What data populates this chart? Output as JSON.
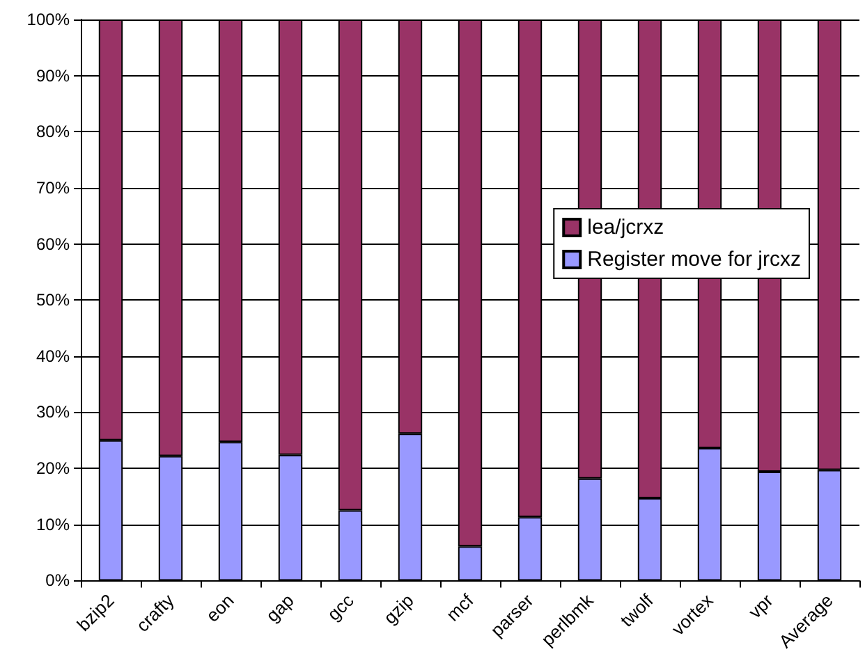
{
  "chart_data": {
    "type": "bar",
    "stacked": true,
    "categories": [
      "bzip2",
      "crafty",
      "eon",
      "gap",
      "gcc",
      "gzip",
      "mcf",
      "parser",
      "perlbmk",
      "twolf",
      "vortex",
      "vpr",
      "Average"
    ],
    "series": [
      {
        "name": "Register move for jrcxz",
        "color": "#9999ff",
        "values": [
          25.0,
          22.2,
          24.7,
          22.4,
          12.5,
          26.2,
          6.1,
          11.3,
          18.2,
          14.7,
          23.6,
          19.4,
          19.7
        ]
      },
      {
        "name": "lea/jcrxz",
        "color": "#993366",
        "values": [
          75.0,
          77.8,
          75.3,
          77.6,
          87.5,
          73.8,
          93.9,
          88.7,
          81.8,
          85.3,
          76.4,
          80.6,
          80.3
        ]
      }
    ],
    "ylim": [
      0,
      100
    ],
    "yticks": [
      {
        "value": 0,
        "label": "0%"
      },
      {
        "value": 10,
        "label": "10%"
      },
      {
        "value": 20,
        "label": "20%"
      },
      {
        "value": 30,
        "label": "30%"
      },
      {
        "value": 40,
        "label": "40%"
      },
      {
        "value": 50,
        "label": "50%"
      },
      {
        "value": 60,
        "label": "60%"
      },
      {
        "value": 70,
        "label": "70%"
      },
      {
        "value": 80,
        "label": "80%"
      },
      {
        "value": 90,
        "label": "90%"
      },
      {
        "value": 100,
        "label": "100%"
      }
    ],
    "grid": "y",
    "legend": "right"
  }
}
